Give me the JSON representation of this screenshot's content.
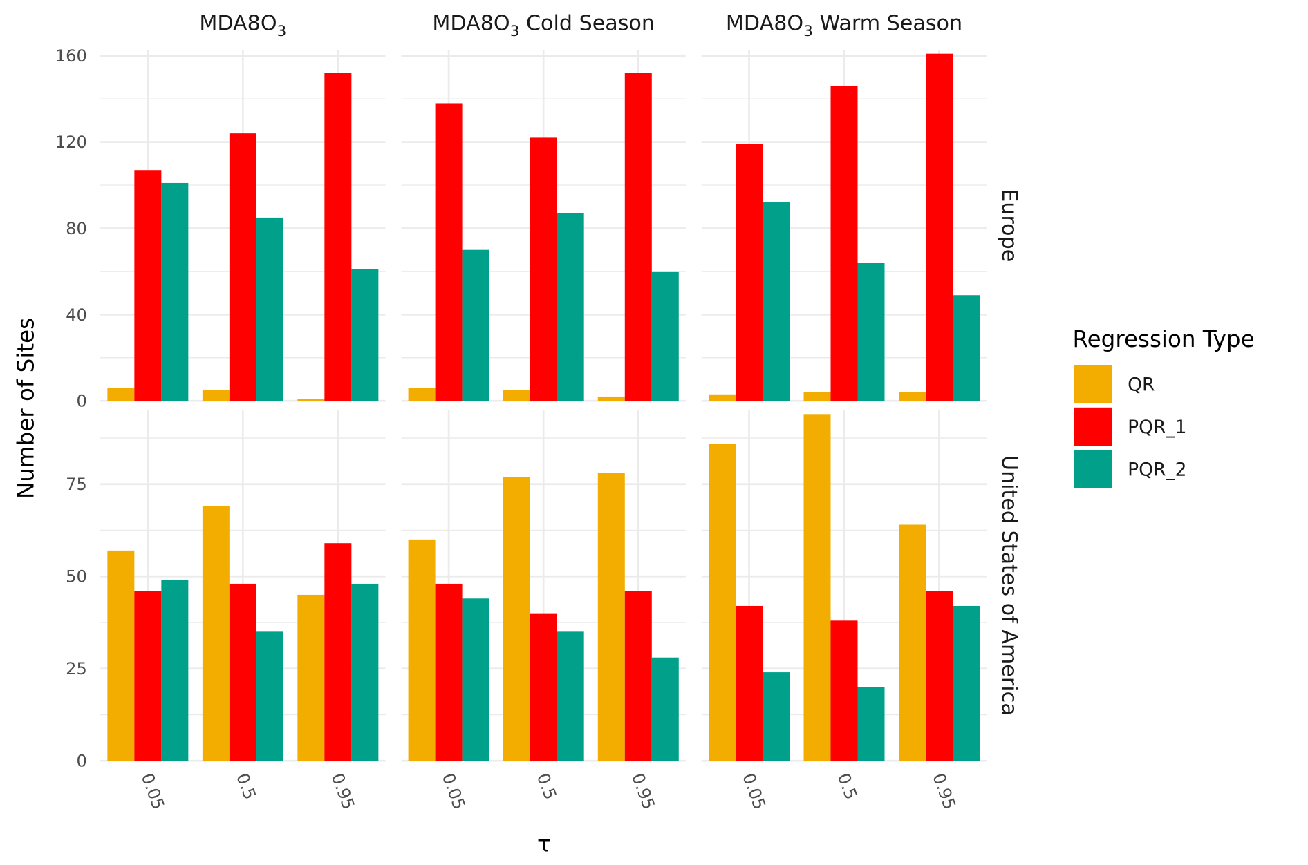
{
  "chart_data": {
    "type": "bar",
    "xlabel": "τ",
    "ylabel": "Number of Sites",
    "categories": [
      "0.05",
      "0.5",
      "0.95"
    ],
    "legend": {
      "title": "Regression Type",
      "placement": "right",
      "entries": [
        "QR",
        "PQR_1",
        "PQR_2"
      ]
    },
    "colors": {
      "QR": "#F2AD00",
      "PQR_1": "#FF0000",
      "PQR_2": "#00A08A"
    },
    "columns": [
      {
        "base": "MDA8O",
        "sub": "3",
        "suffix": ""
      },
      {
        "base": "MDA8O",
        "sub": "3",
        "suffix": " Cold Season"
      },
      {
        "base": "MDA8O",
        "sub": "3",
        "suffix": " Warm Season"
      }
    ],
    "rows": [
      {
        "label": "Europe",
        "ylim": [
          0,
          162.7
        ],
        "ticks": [
          0,
          40,
          80,
          120,
          160
        ],
        "tick_labels": [
          "0",
          "40",
          "80",
          "120",
          "160"
        ]
      },
      {
        "label": "United States of America",
        "ylim": [
          0,
          95.1
        ],
        "ticks": [
          0,
          25,
          50,
          75
        ],
        "tick_labels": [
          "0",
          "25",
          "50",
          "75"
        ]
      }
    ],
    "panels": [
      [
        {
          "series": [
            {
              "name": "QR",
              "values": [
                6,
                5,
                1
              ]
            },
            {
              "name": "PQR_1",
              "values": [
                107,
                124,
                152
              ]
            },
            {
              "name": "PQR_2",
              "values": [
                101,
                85,
                61
              ]
            }
          ]
        },
        {
          "series": [
            {
              "name": "QR",
              "values": [
                6,
                5,
                2
              ]
            },
            {
              "name": "PQR_1",
              "values": [
                138,
                122,
                152
              ]
            },
            {
              "name": "PQR_2",
              "values": [
                70,
                87,
                60
              ]
            }
          ]
        },
        {
          "series": [
            {
              "name": "QR",
              "values": [
                3,
                4,
                4
              ]
            },
            {
              "name": "PQR_1",
              "values": [
                119,
                146,
                161
              ]
            },
            {
              "name": "PQR_2",
              "values": [
                92,
                64,
                49
              ]
            }
          ]
        }
      ],
      [
        {
          "series": [
            {
              "name": "QR",
              "values": [
                57,
                69,
                45
              ]
            },
            {
              "name": "PQR_1",
              "values": [
                46,
                48,
                59
              ]
            },
            {
              "name": "PQR_2",
              "values": [
                49,
                35,
                48
              ]
            }
          ]
        },
        {
          "series": [
            {
              "name": "QR",
              "values": [
                60,
                77,
                78
              ]
            },
            {
              "name": "PQR_1",
              "values": [
                48,
                40,
                46
              ]
            },
            {
              "name": "PQR_2",
              "values": [
                44,
                35,
                28
              ]
            }
          ]
        },
        {
          "series": [
            {
              "name": "QR",
              "values": [
                86,
                94,
                64
              ]
            },
            {
              "name": "PQR_1",
              "values": [
                42,
                38,
                46
              ]
            },
            {
              "name": "PQR_2",
              "values": [
                24,
                20,
                42
              ]
            }
          ]
        }
      ]
    ]
  }
}
